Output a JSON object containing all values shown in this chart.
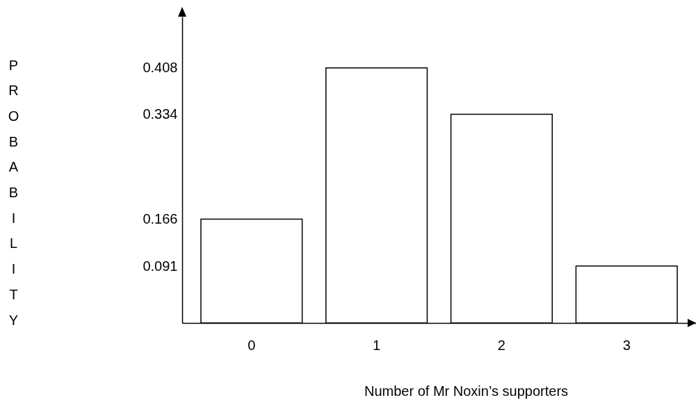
{
  "chart_data": {
    "type": "bar",
    "xlabel": "Number of Mr Noxin’s supporters",
    "ylabel": "PROBABILITY",
    "categories": [
      "0",
      "1",
      "2",
      "3"
    ],
    "values": [
      0.166,
      0.408,
      0.334,
      0.091
    ],
    "color": "#ffffff",
    "ylim": [
      0,
      0.49
    ],
    "yticks": [
      0.091,
      0.166,
      0.334,
      0.408
    ]
  }
}
